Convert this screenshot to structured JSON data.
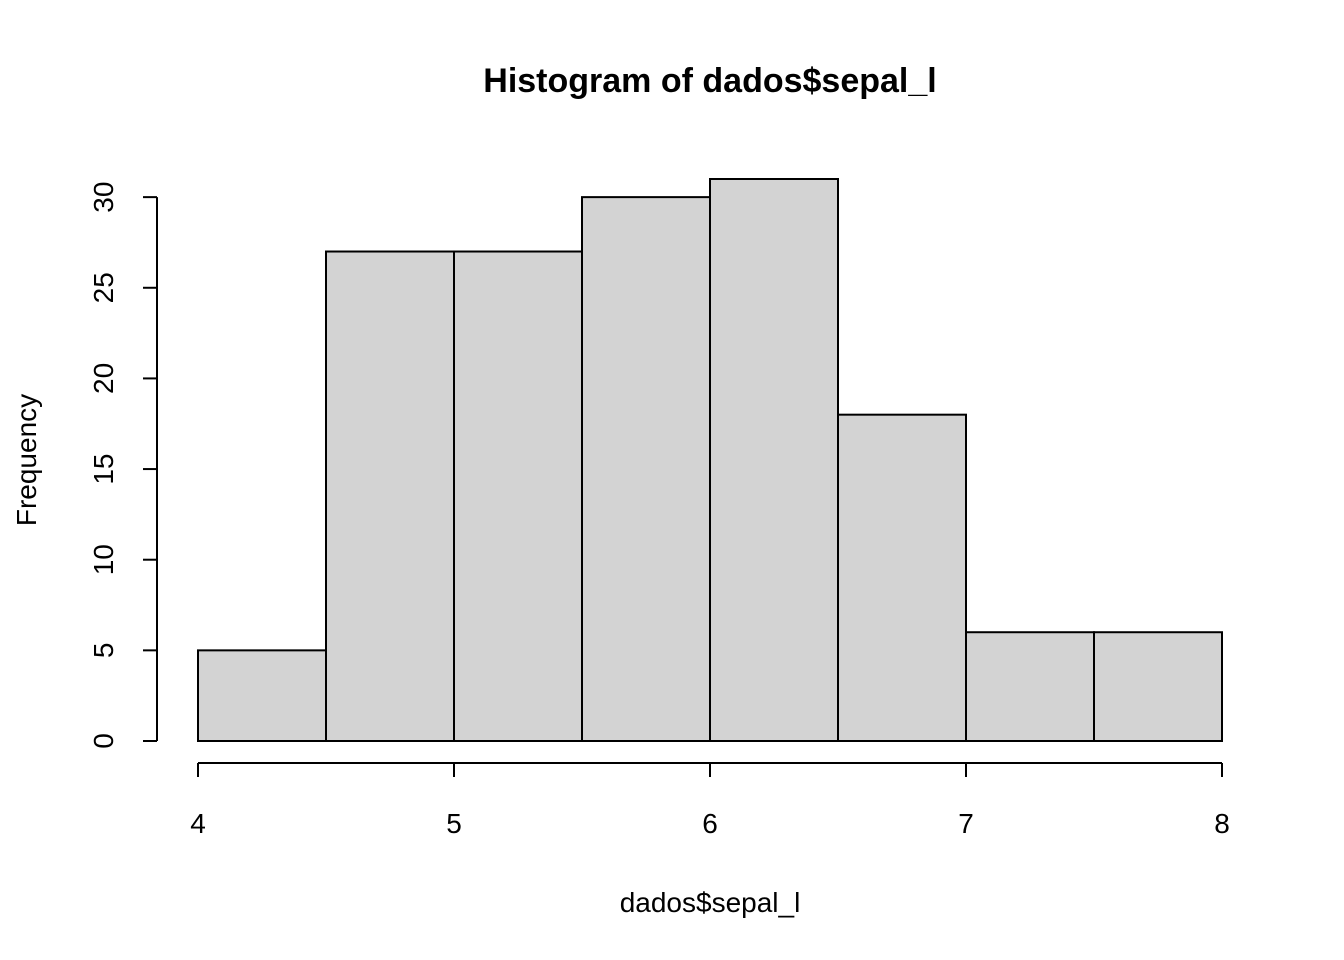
{
  "chart_data": {
    "type": "bar",
    "title": "Histogram of dados$sepal_l",
    "xlabel": "dados$sepal_l",
    "ylabel": "Frequency",
    "bins": [
      {
        "start": 4.0,
        "end": 4.5,
        "count": 5
      },
      {
        "start": 4.5,
        "end": 5.0,
        "count": 27
      },
      {
        "start": 5.0,
        "end": 5.5,
        "count": 27
      },
      {
        "start": 5.5,
        "end": 6.0,
        "count": 30
      },
      {
        "start": 6.0,
        "end": 6.5,
        "count": 31
      },
      {
        "start": 6.5,
        "end": 7.0,
        "count": 18
      },
      {
        "start": 7.0,
        "end": 7.5,
        "count": 6
      },
      {
        "start": 7.5,
        "end": 8.0,
        "count": 6
      }
    ],
    "xlim": [
      4,
      8
    ],
    "ylim": [
      0,
      31
    ],
    "x_ticks": [
      4,
      5,
      6,
      7,
      8
    ],
    "y_ticks": [
      0,
      5,
      10,
      15,
      20,
      25,
      30
    ],
    "bar_color": "#d3d3d3",
    "border_color": "#000000",
    "grid": false
  }
}
